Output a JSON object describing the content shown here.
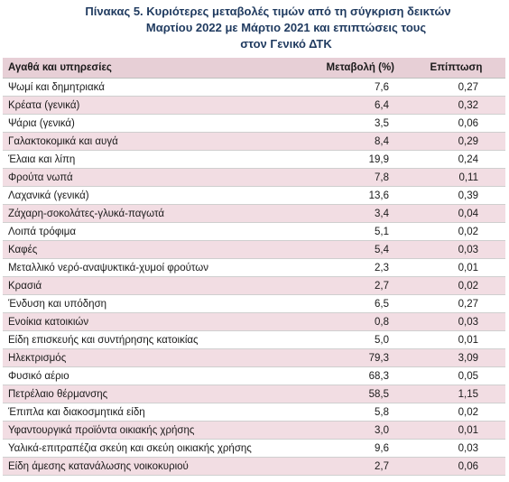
{
  "title": {
    "line1": "Πίνακας  5. Κυριότερες μεταβολές τιμών από τη σύγκριση δεικτών",
    "line2": "Μαρτίου 2022 με Μάρτιο 2021 και επιπτώσεις τους",
    "line3": "στον Γενικό ΔΤΚ"
  },
  "headers": {
    "item": "Αγαθά και υπηρεσίες",
    "change": "Μεταβολή (%)",
    "impact": "Επίπτωση"
  },
  "rows": [
    {
      "item": "Ψωμί και δημητριακά",
      "change": "7,6",
      "impact": "0,27"
    },
    {
      "item": "Κρέατα (γενικά)",
      "change": "6,4",
      "impact": "0,32"
    },
    {
      "item": "Ψάρια (γενικά)",
      "change": "3,5",
      "impact": "0,06"
    },
    {
      "item": "Γαλακτοκομικά και αυγά",
      "change": "8,4",
      "impact": "0,29"
    },
    {
      "item": "Έλαια και λίπη",
      "change": "19,9",
      "impact": "0,24"
    },
    {
      "item": "Φρούτα νωπά",
      "change": "7,8",
      "impact": "0,11"
    },
    {
      "item": "Λαχανικά (γενικά)",
      "change": "13,6",
      "impact": "0,39"
    },
    {
      "item": "Ζάχαρη-σοκολάτες-γλυκά-παγωτά",
      "change": "3,4",
      "impact": "0,04"
    },
    {
      "item": "Λοιπά τρόφιμα",
      "change": "5,1",
      "impact": "0,02"
    },
    {
      "item": "Καφές",
      "change": "5,4",
      "impact": "0,03"
    },
    {
      "item": "Μεταλλικό νερό-αναψυκτικά-χυμοί φρούτων",
      "change": "2,3",
      "impact": "0,01"
    },
    {
      "item": "Κρασιά",
      "change": "2,7",
      "impact": "0,02"
    },
    {
      "item": "Ένδυση και υπόδηση",
      "change": "6,5",
      "impact": "0,27"
    },
    {
      "item": "Ενοίκια κατοικιών",
      "change": "0,8",
      "impact": "0,03"
    },
    {
      "item": "Είδη επισκευής και συντήρησης κατοικίας",
      "change": "5,0",
      "impact": "0,01"
    },
    {
      "item": "Ηλεκτρισμός",
      "change": "79,3",
      "impact": "3,09"
    },
    {
      "item": "Φυσικό αέριο",
      "change": "68,3",
      "impact": "0,05"
    },
    {
      "item": "Πετρέλαιο θέρμανσης",
      "change": "58,5",
      "impact": "1,15"
    },
    {
      "item": "Έπιπλα και διακοσμητικά είδη",
      "change": "5,8",
      "impact": "0,02"
    },
    {
      "item": "Υφαντουργικά προϊόντα οικιακής χρήσης",
      "change": "3,0",
      "impact": "0,01"
    },
    {
      "item": "Υαλικά-επιτραπέζια σκεύη και σκεύη οικιακής χρήσης",
      "change": "9,6",
      "impact": "0,03"
    },
    {
      "item": "Είδη άμεσης κατανάλωσης νοικοκυριού",
      "change": "2,7",
      "impact": "0,06"
    }
  ]
}
